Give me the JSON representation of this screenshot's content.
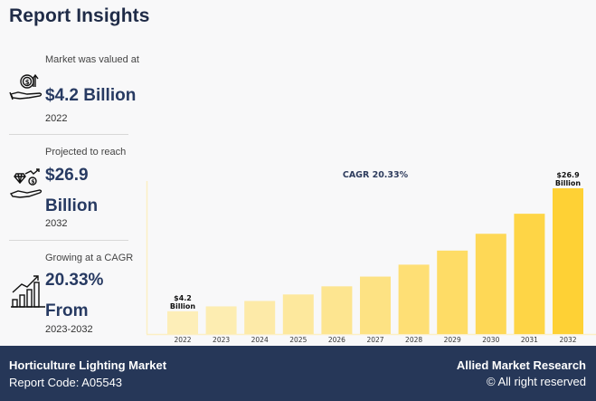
{
  "header": {
    "title": "Report Insights"
  },
  "insights": [
    {
      "icon": "hand-coin-growth-icon",
      "label": "Market was valued at",
      "value": "$4.2 Billion",
      "year": "2022"
    },
    {
      "icon": "hand-diamond-coin-icon",
      "label": "Projected to reach",
      "value": "$26.9 Billion",
      "year": "2032"
    },
    {
      "icon": "bar-growth-chart-icon",
      "label": "Growing at a CAGR",
      "value": "20.33% From",
      "year": "2023-2032"
    }
  ],
  "footer": {
    "market_name": "Horticulture Lighting Market",
    "report_code": "Report Code: A05543",
    "brand": "Allied Market Research",
    "rights": "© All right reserved"
  },
  "colors": {
    "title": "#1f2b47",
    "value": "#273a62",
    "footer_bg": "#263758",
    "bar_light": "#fdeeb8",
    "bar_dark": "#fed135"
  },
  "chart_data": {
    "type": "bar",
    "title": "CAGR 20.33%",
    "xlabel": "",
    "ylabel": "",
    "categories": [
      "2022",
      "2023",
      "2024",
      "2025",
      "2026",
      "2027",
      "2028",
      "2029",
      "2030",
      "2031",
      "2032"
    ],
    "values": [
      4.2,
      5.1,
      6.1,
      7.3,
      8.8,
      10.6,
      12.8,
      15.4,
      18.5,
      22.2,
      26.9
    ],
    "units": "USD Billion",
    "ylim": [
      0,
      28
    ],
    "grid": false,
    "annotations": [
      {
        "category": "2022",
        "text": [
          "$4.2",
          "Billion"
        ]
      },
      {
        "category": "2032",
        "text": [
          "$26.9",
          "Billion"
        ]
      }
    ]
  }
}
